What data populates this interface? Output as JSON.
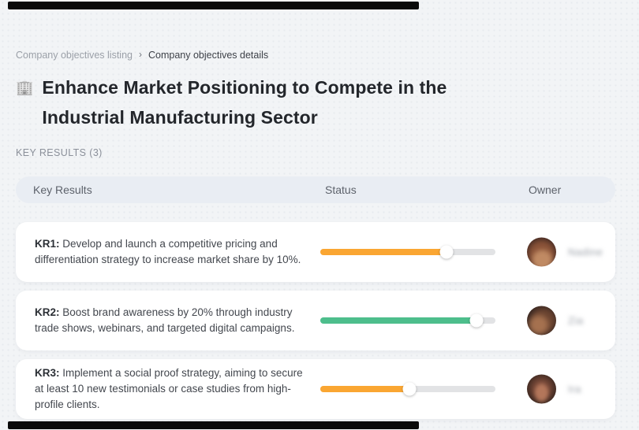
{
  "breadcrumb": {
    "items": [
      {
        "label": "Company objectives listing"
      },
      {
        "label": "Company objectives details"
      }
    ],
    "separator": "›"
  },
  "header": {
    "icon": "🏢",
    "title": "Enhance Market Positioning to Compete in the Industrial Manufacturing Sector"
  },
  "section": {
    "label": "KEY RESULTS (3)"
  },
  "table": {
    "columns": [
      "Key Results",
      "Status",
      "Owner"
    ],
    "rows": [
      {
        "kr_label": "KR1:",
        "kr_text": "Develop and launch a competitive pricing and differentiation strategy to increase market share by 10%.",
        "progress_percent": 72,
        "progress_color": "#FAA632",
        "owner_name": "Nadine"
      },
      {
        "kr_label": "KR2:",
        "kr_text": "Boost brand awareness by 20% through industry trade shows, webinars, and targeted digital campaigns.",
        "progress_percent": 89,
        "progress_color": "#4DBE8C",
        "owner_name": "Zia"
      },
      {
        "kr_label": "KR3:",
        "kr_text": "Implement a social proof strategy, aiming to secure at least 10 new testimonials or case studies from high-profile clients.",
        "progress_percent": 51,
        "progress_color": "#FAA632",
        "owner_name": "Ira"
      }
    ]
  },
  "colors": {
    "orange": "#FAA632",
    "green": "#4DBE8C",
    "header_bar": "#E9EDF3",
    "background": "#F2F4F6"
  }
}
